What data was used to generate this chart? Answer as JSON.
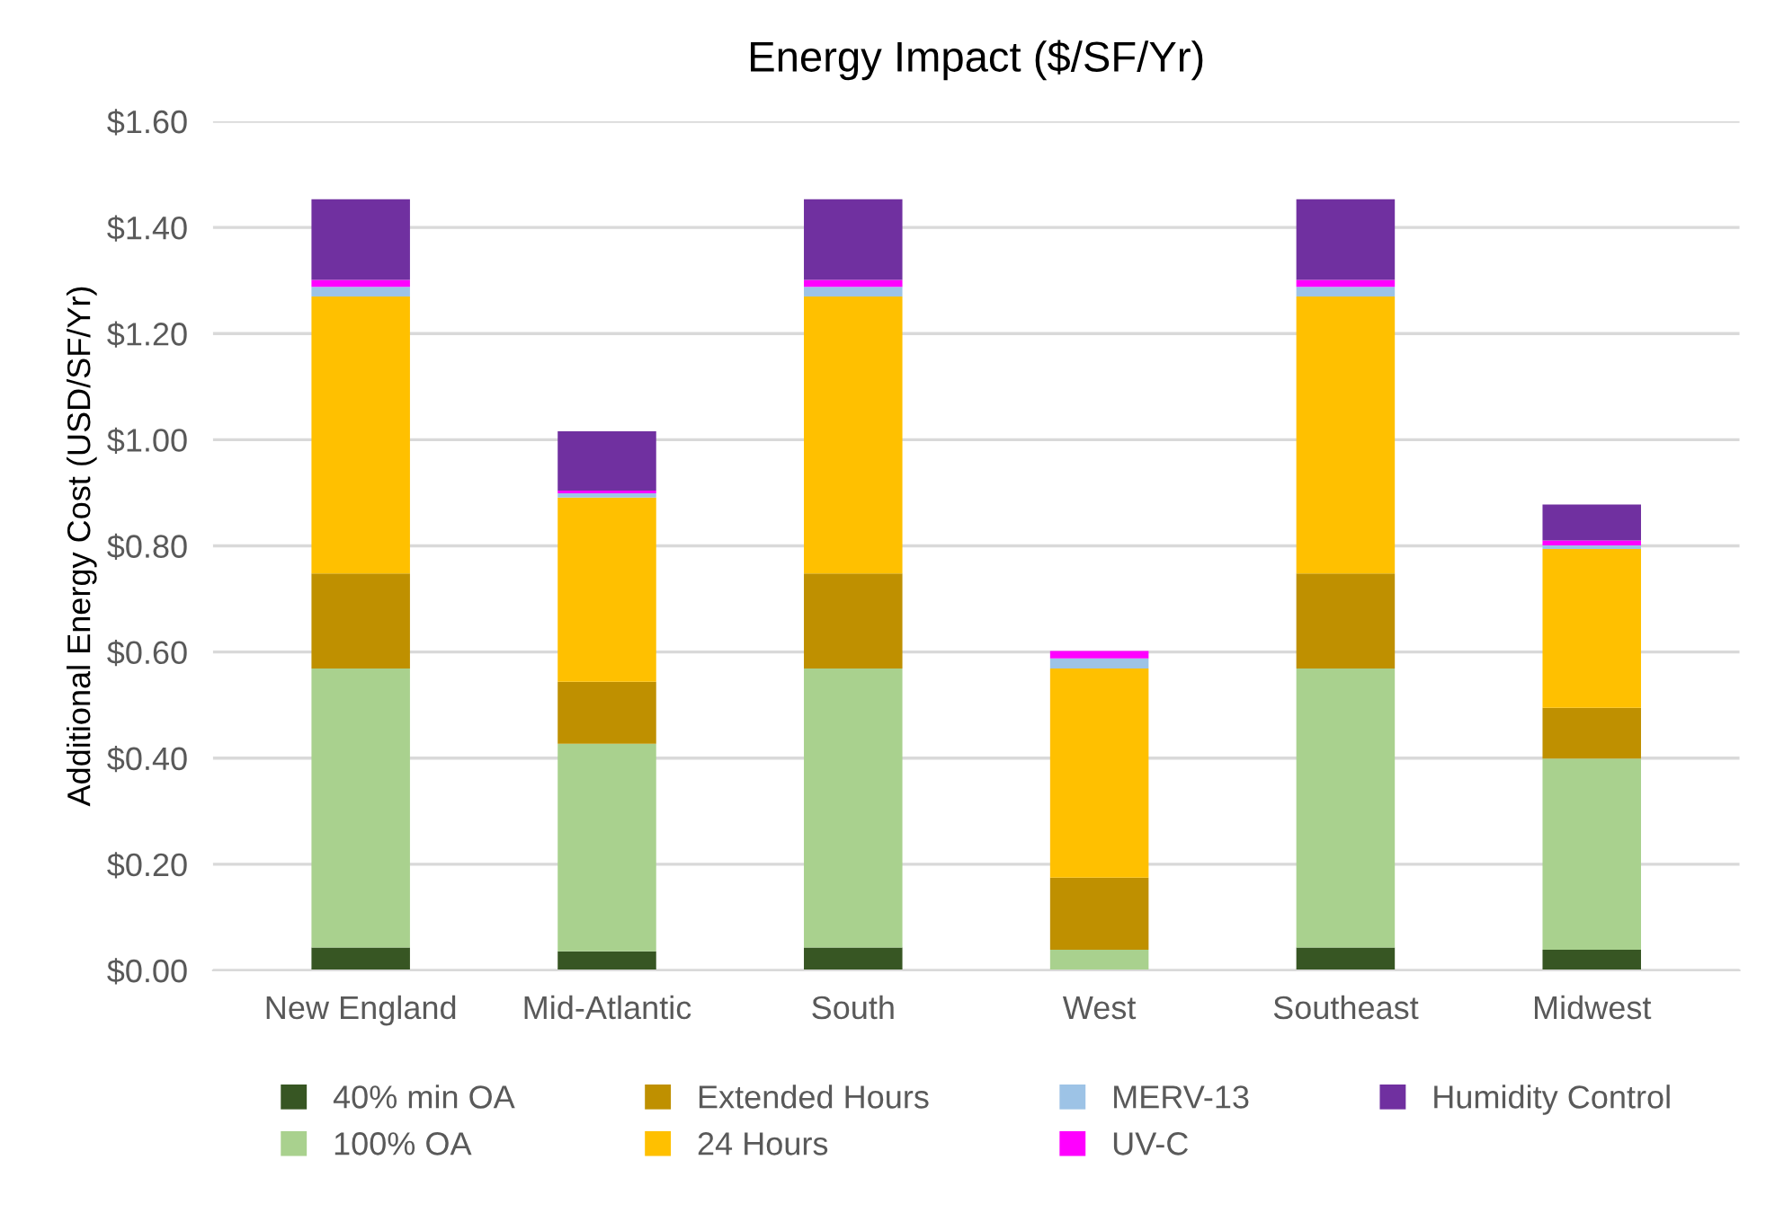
{
  "chart_data": {
    "type": "bar",
    "stacked": true,
    "title": "Energy Impact ($/SF/Yr)",
    "ylabel": "Additional Energy Cost (USD/SF/Yr)",
    "categories": [
      "New England",
      "Mid-Atlantic",
      "South",
      "West",
      "Southeast",
      "Midwest"
    ],
    "series": [
      {
        "name": "40% min OA",
        "color": "#375623",
        "values": [
          0.043,
          0.036,
          0.043,
          0,
          0.043,
          0.039
        ]
      },
      {
        "name": "100% OA",
        "color": "#a9d18e",
        "values": [
          0.526,
          0.391,
          0.526,
          0.039,
          0.526,
          0.36
        ]
      },
      {
        "name": "Extended Hours",
        "color": "#bf9000",
        "values": [
          0.179,
          0.117,
          0.179,
          0.136,
          0.179,
          0.096
        ]
      },
      {
        "name": "24 Hours",
        "color": "#ffc000",
        "values": [
          0.522,
          0.347,
          0.522,
          0.394,
          0.522,
          0.299
        ]
      },
      {
        "name": "MERV-13",
        "color": "#9dc3e6",
        "values": [
          0.018,
          0.008,
          0.018,
          0.019,
          0.018,
          0.007
        ]
      },
      {
        "name": "UV-C",
        "color": "#ff00ff",
        "values": [
          0.013,
          0.005,
          0.013,
          0.014,
          0.013,
          0.009
        ]
      },
      {
        "name": "Humidity Control",
        "color": "#7030a0",
        "values": [
          0.152,
          0.112,
          0.152,
          0,
          0.152,
          0.068
        ]
      }
    ],
    "ylim": [
      0,
      1.6
    ],
    "yticks": [
      {
        "value": 0,
        "label": "$0.00"
      },
      {
        "value": 0.2,
        "label": "$0.20"
      },
      {
        "value": 0.4,
        "label": "$0.40"
      },
      {
        "value": 0.6,
        "label": "$0.60"
      },
      {
        "value": 0.8,
        "label": "$0.80"
      },
      {
        "value": 1.0,
        "label": "$1.00"
      },
      {
        "value": 1.2,
        "label": "$1.20"
      },
      {
        "value": 1.4,
        "label": "$1.40"
      },
      {
        "value": 1.6,
        "label": "$1.60"
      }
    ],
    "grid": "y",
    "legend": "bottom"
  }
}
